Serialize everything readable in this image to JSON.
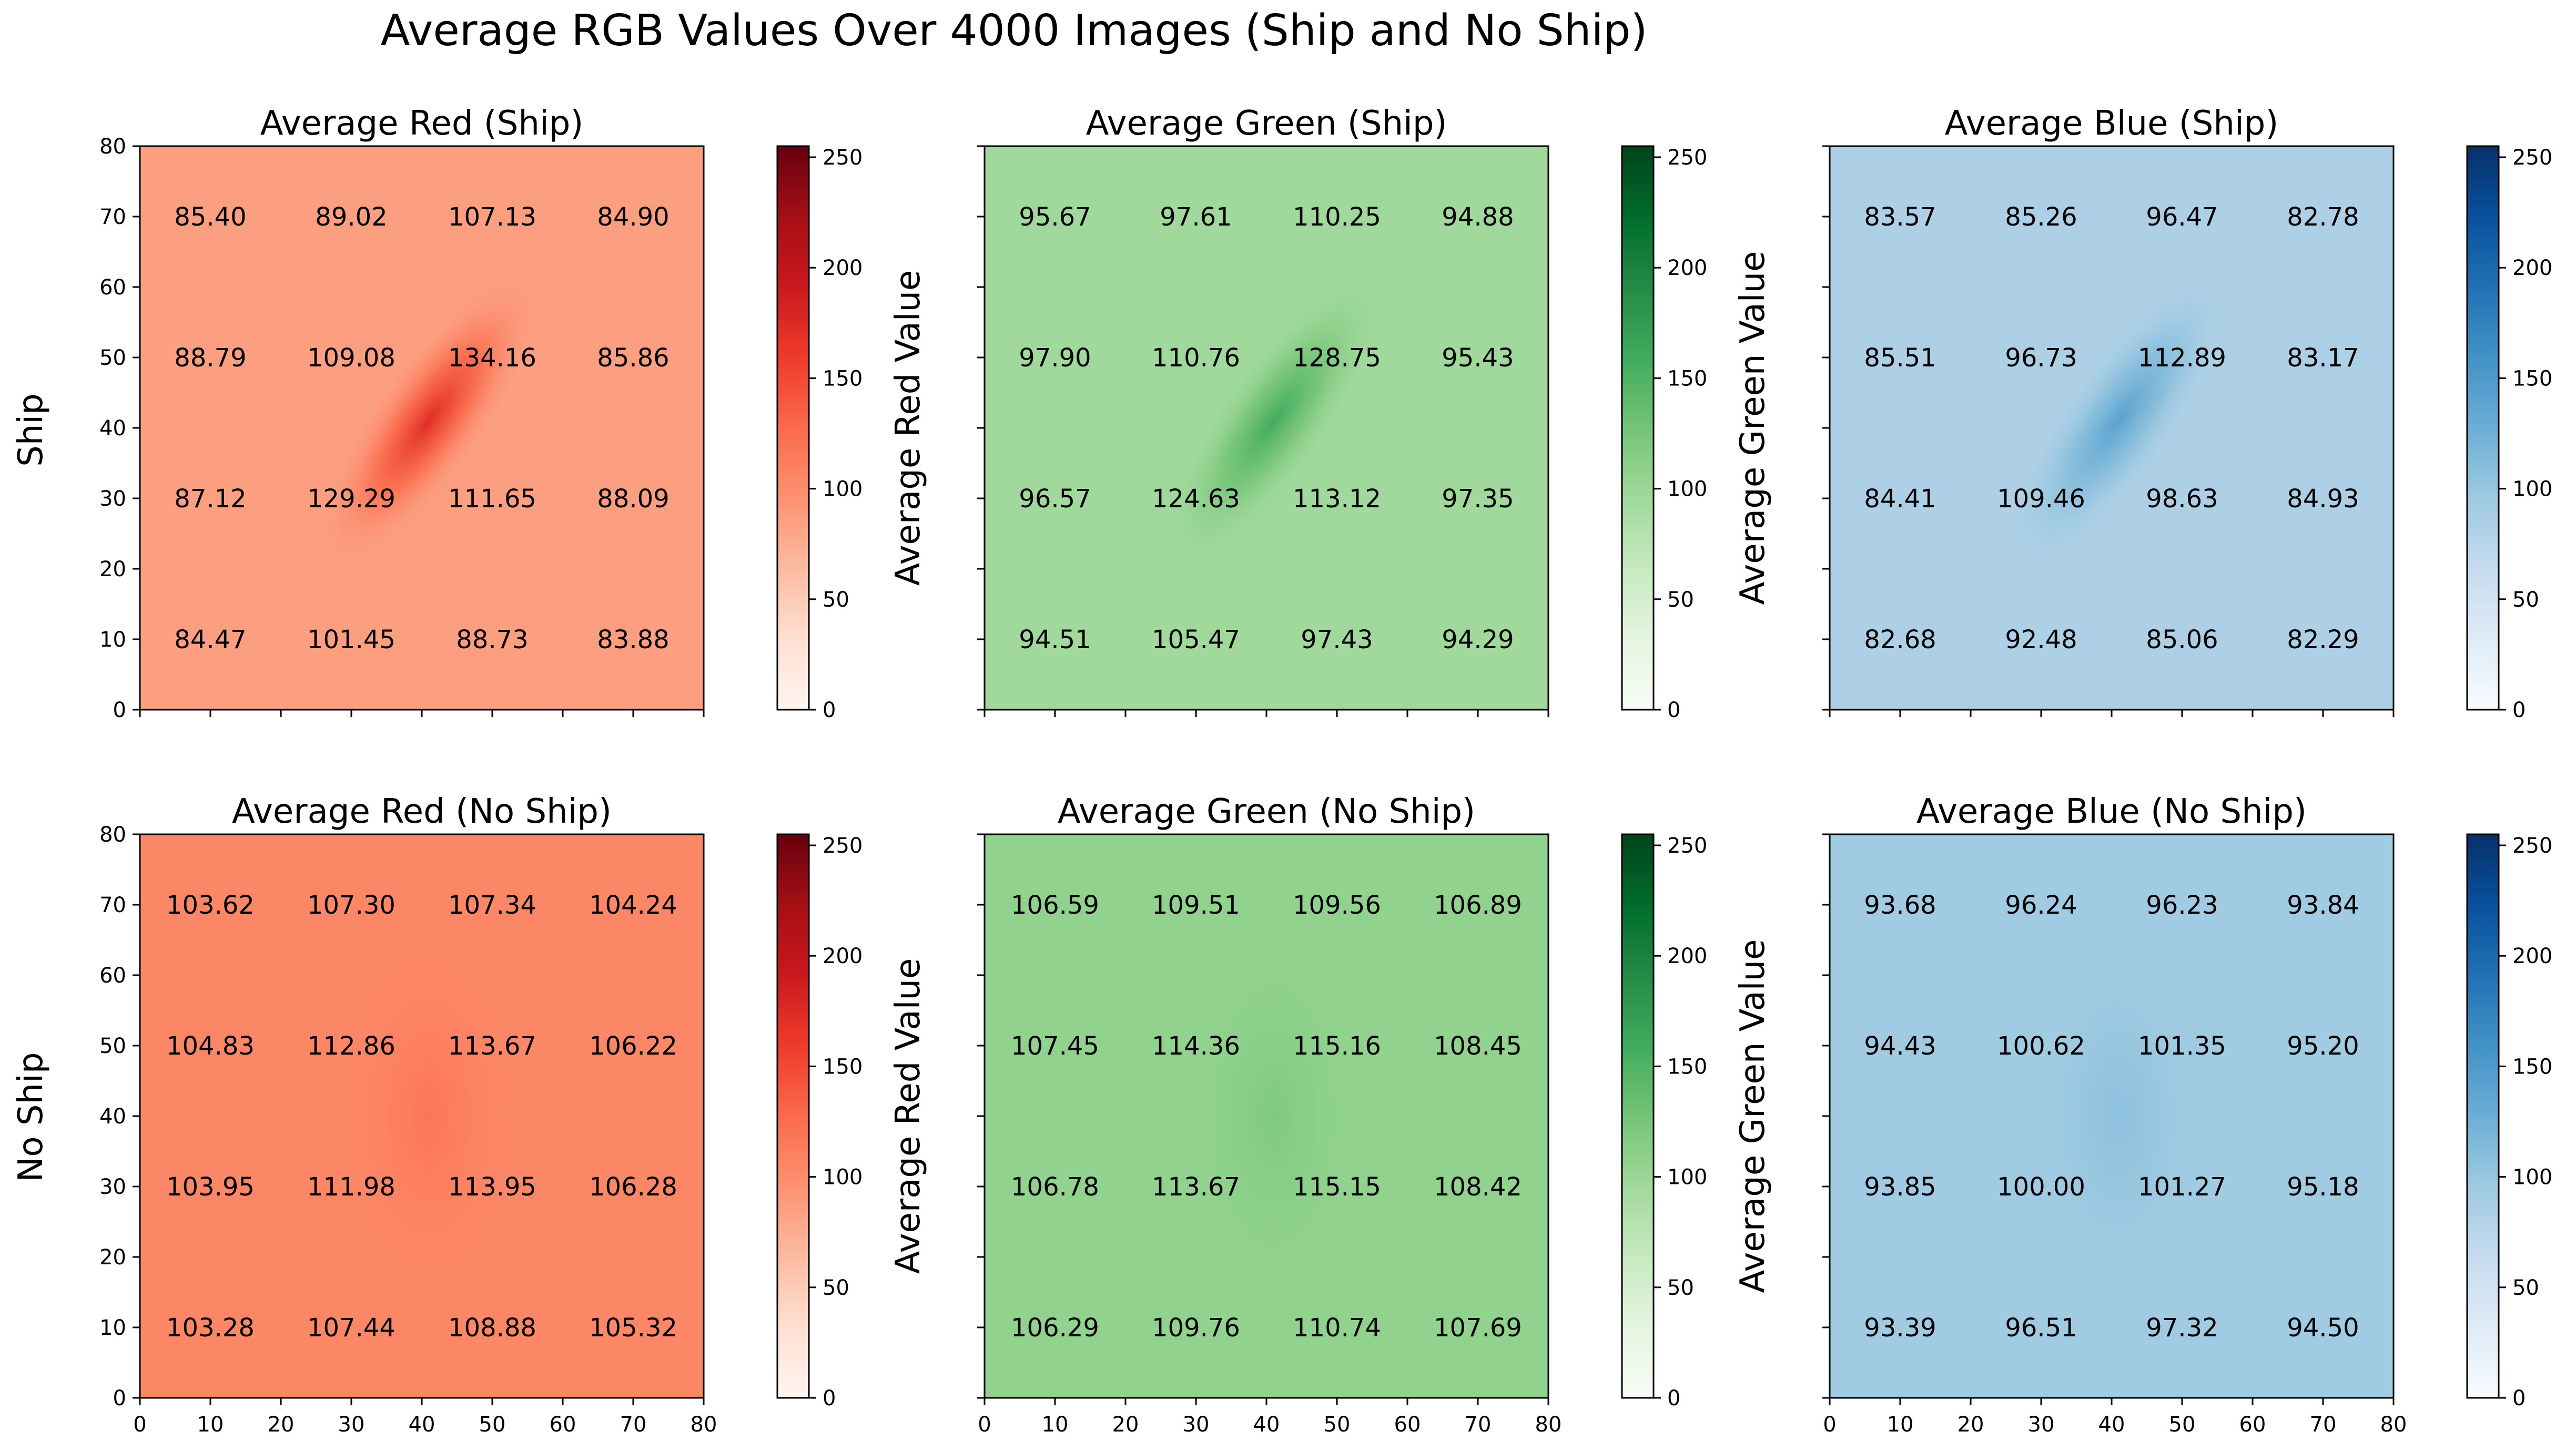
{
  "figure": {
    "title": "Average RGB Values Over 4000 Images (Ship and No Ship)",
    "row_labels": [
      "Ship",
      "No Ship"
    ]
  },
  "colors": {
    "red_cmap": [
      "#fff5f0",
      "#fee0d2",
      "#fcbba1",
      "#fc9272",
      "#fb6a4a",
      "#ef3b2c",
      "#cb181d",
      "#a50f15",
      "#67000d"
    ],
    "green_cmap": [
      "#f7fcf5",
      "#e5f5e0",
      "#c7e9c0",
      "#a1d99b",
      "#74c476",
      "#41ab5d",
      "#238b45",
      "#006d2c",
      "#00441b"
    ],
    "blue_cmap": [
      "#f7fbff",
      "#deebf7",
      "#c6dbef",
      "#9ecae1",
      "#6baed6",
      "#4292c6",
      "#2171b5",
      "#08519c",
      "#08306b"
    ]
  },
  "chart_data": [
    {
      "type": "heatmap",
      "title": "Average Red (Ship)",
      "colorbar_label": "Average Red Value",
      "cmap": "red_cmap",
      "xlim": [
        0,
        80
      ],
      "ylim": [
        0,
        80
      ],
      "xticks": [],
      "yticks": [
        0,
        10,
        20,
        30,
        40,
        50,
        60,
        70,
        80
      ],
      "colorbar_range": [
        0,
        255
      ],
      "colorbar_ticks": [
        0,
        50,
        100,
        150,
        200,
        250
      ],
      "cell_centers": [
        10,
        30,
        50,
        70
      ],
      "annotations": [
        [
          "84.47",
          "101.45",
          "88.73",
          "83.88"
        ],
        [
          "87.12",
          "129.29",
          "111.65",
          "88.09"
        ],
        [
          "88.79",
          "109.08",
          "134.16",
          "85.86"
        ],
        [
          "85.40",
          "89.02",
          "107.13",
          "84.90"
        ]
      ],
      "values": [
        [
          84.47,
          101.45,
          88.73,
          83.88
        ],
        [
          87.12,
          129.29,
          111.65,
          88.09
        ],
        [
          88.79,
          109.08,
          134.16,
          85.86
        ],
        [
          85.4,
          89.02,
          107.13,
          84.9
        ]
      ],
      "background_value": 86,
      "feature": {
        "type": "ellipse",
        "center": [
          41,
          41
        ],
        "radii": [
          8,
          25
        ],
        "angle": 35,
        "peak_value": 172
      }
    },
    {
      "type": "heatmap",
      "title": "Average Green (Ship)",
      "colorbar_label": "Average Green Value",
      "cmap": "green_cmap",
      "xlim": [
        0,
        80
      ],
      "ylim": [
        0,
        80
      ],
      "xticks": [],
      "yticks": [],
      "colorbar_range": [
        0,
        255
      ],
      "colorbar_ticks": [
        0,
        50,
        100,
        150,
        200,
        250
      ],
      "cell_centers": [
        10,
        30,
        50,
        70
      ],
      "annotations": [
        [
          "94.51",
          "105.47",
          "97.43",
          "94.29"
        ],
        [
          "96.57",
          "124.63",
          "113.12",
          "97.35"
        ],
        [
          "97.90",
          "110.76",
          "128.75",
          "95.43"
        ],
        [
          "95.67",
          "97.61",
          "110.25",
          "94.88"
        ]
      ],
      "values": [
        [
          94.51,
          105.47,
          97.43,
          94.29
        ],
        [
          96.57,
          124.63,
          113.12,
          97.35
        ],
        [
          97.9,
          110.76,
          128.75,
          95.43
        ],
        [
          95.67,
          97.61,
          110.25,
          94.88
        ]
      ],
      "background_value": 96,
      "feature": {
        "type": "ellipse",
        "center": [
          41,
          41
        ],
        "radii": [
          8,
          25
        ],
        "angle": 35,
        "peak_value": 158
      }
    },
    {
      "type": "heatmap",
      "title": "Average Blue (Ship)",
      "colorbar_label": "Average Blue Value",
      "cmap": "blue_cmap",
      "xlim": [
        0,
        80
      ],
      "ylim": [
        0,
        80
      ],
      "xticks": [],
      "yticks": [],
      "colorbar_range": [
        0,
        255
      ],
      "colorbar_ticks": [
        0,
        50,
        100,
        150,
        200,
        250
      ],
      "cell_centers": [
        10,
        30,
        50,
        70
      ],
      "annotations": [
        [
          "82.68",
          "92.48",
          "85.06",
          "82.29"
        ],
        [
          "84.41",
          "109.46",
          "98.63",
          "84.93"
        ],
        [
          "85.51",
          "96.73",
          "112.89",
          "83.17"
        ],
        [
          "83.57",
          "85.26",
          "96.47",
          "82.78"
        ]
      ],
      "values": [
        [
          82.68,
          92.48,
          85.06,
          82.29
        ],
        [
          84.41,
          109.46,
          98.63,
          84.93
        ],
        [
          85.51,
          96.73,
          112.89,
          83.17
        ],
        [
          83.57,
          85.26,
          96.47,
          82.78
        ]
      ],
      "background_value": 84,
      "feature": {
        "type": "ellipse",
        "center": [
          41,
          41
        ],
        "radii": [
          8,
          25
        ],
        "angle": 35,
        "peak_value": 140
      }
    },
    {
      "type": "heatmap",
      "title": "Average Red (No Ship)",
      "colorbar_label": "Average Red Value",
      "cmap": "red_cmap",
      "xlim": [
        0,
        80
      ],
      "ylim": [
        0,
        80
      ],
      "xticks": [
        0,
        10,
        20,
        30,
        40,
        50,
        60,
        70,
        80
      ],
      "yticks": [
        0,
        10,
        20,
        30,
        40,
        50,
        60,
        70,
        80
      ],
      "colorbar_range": [
        0,
        255
      ],
      "colorbar_ticks": [
        0,
        50,
        100,
        150,
        200,
        250
      ],
      "cell_centers": [
        10,
        30,
        50,
        70
      ],
      "annotations": [
        [
          "103.28",
          "107.44",
          "108.88",
          "105.32"
        ],
        [
          "103.95",
          "111.98",
          "113.95",
          "106.28"
        ],
        [
          "104.83",
          "112.86",
          "113.67",
          "106.22"
        ],
        [
          "103.62",
          "107.30",
          "107.34",
          "104.24"
        ]
      ],
      "values": [
        [
          103.28,
          107.44,
          108.88,
          105.32
        ],
        [
          103.95,
          111.98,
          113.95,
          106.28
        ],
        [
          104.83,
          112.86,
          113.67,
          106.22
        ],
        [
          103.62,
          107.3,
          107.34,
          104.24
        ]
      ],
      "background_value": 104,
      "feature": {
        "type": "ellipse",
        "center": [
          41,
          40
        ],
        "radii": [
          12,
          25
        ],
        "angle": 0,
        "peak_value": 118
      }
    },
    {
      "type": "heatmap",
      "title": "Average Green (No Ship)",
      "colorbar_label": "Average Green Value",
      "cmap": "green_cmap",
      "xlim": [
        0,
        80
      ],
      "ylim": [
        0,
        80
      ],
      "xticks": [
        0,
        10,
        20,
        30,
        40,
        50,
        60,
        70,
        80
      ],
      "yticks": [],
      "colorbar_range": [
        0,
        255
      ],
      "colorbar_ticks": [
        0,
        50,
        100,
        150,
        200,
        250
      ],
      "cell_centers": [
        10,
        30,
        50,
        70
      ],
      "annotations": [
        [
          "106.29",
          "109.76",
          "110.74",
          "107.69"
        ],
        [
          "106.78",
          "113.67",
          "115.15",
          "108.42"
        ],
        [
          "107.45",
          "114.36",
          "115.16",
          "108.45"
        ],
        [
          "106.59",
          "109.51",
          "109.56",
          "106.89"
        ]
      ],
      "values": [
        [
          106.29,
          109.76,
          110.74,
          107.69
        ],
        [
          106.78,
          113.67,
          115.15,
          108.42
        ],
        [
          107.45,
          114.36,
          115.16,
          108.45
        ],
        [
          106.59,
          109.51,
          109.56,
          106.89
        ]
      ],
      "background_value": 107,
      "feature": {
        "type": "ellipse",
        "center": [
          41,
          40
        ],
        "radii": [
          12,
          25
        ],
        "angle": 0,
        "peak_value": 119
      }
    },
    {
      "type": "heatmap",
      "title": "Average Blue (No Ship)",
      "colorbar_label": "Average Blue Value",
      "cmap": "blue_cmap",
      "xlim": [
        0,
        80
      ],
      "ylim": [
        0,
        80
      ],
      "xticks": [
        0,
        10,
        20,
        30,
        40,
        50,
        60,
        70,
        80
      ],
      "yticks": [],
      "colorbar_range": [
        0,
        255
      ],
      "colorbar_ticks": [
        0,
        50,
        100,
        150,
        200,
        250
      ],
      "cell_centers": [
        10,
        30,
        50,
        70
      ],
      "annotations": [
        [
          "93.39",
          "96.51",
          "97.32",
          "94.50"
        ],
        [
          "93.85",
          "100.00",
          "101.27",
          "95.18"
        ],
        [
          "94.43",
          "100.62",
          "101.35",
          "95.20"
        ],
        [
          "93.68",
          "96.24",
          "96.23",
          "93.84"
        ]
      ],
      "values": [
        [
          93.39,
          96.51,
          97.32,
          94.5
        ],
        [
          93.85,
          100.0,
          101.27,
          95.18
        ],
        [
          94.43,
          100.62,
          101.35,
          95.2
        ],
        [
          93.68,
          96.24,
          96.23,
          93.84
        ]
      ],
      "background_value": 94,
      "feature": {
        "type": "ellipse",
        "center": [
          41,
          40
        ],
        "radii": [
          12,
          25
        ],
        "angle": 0,
        "peak_value": 106
      }
    }
  ]
}
